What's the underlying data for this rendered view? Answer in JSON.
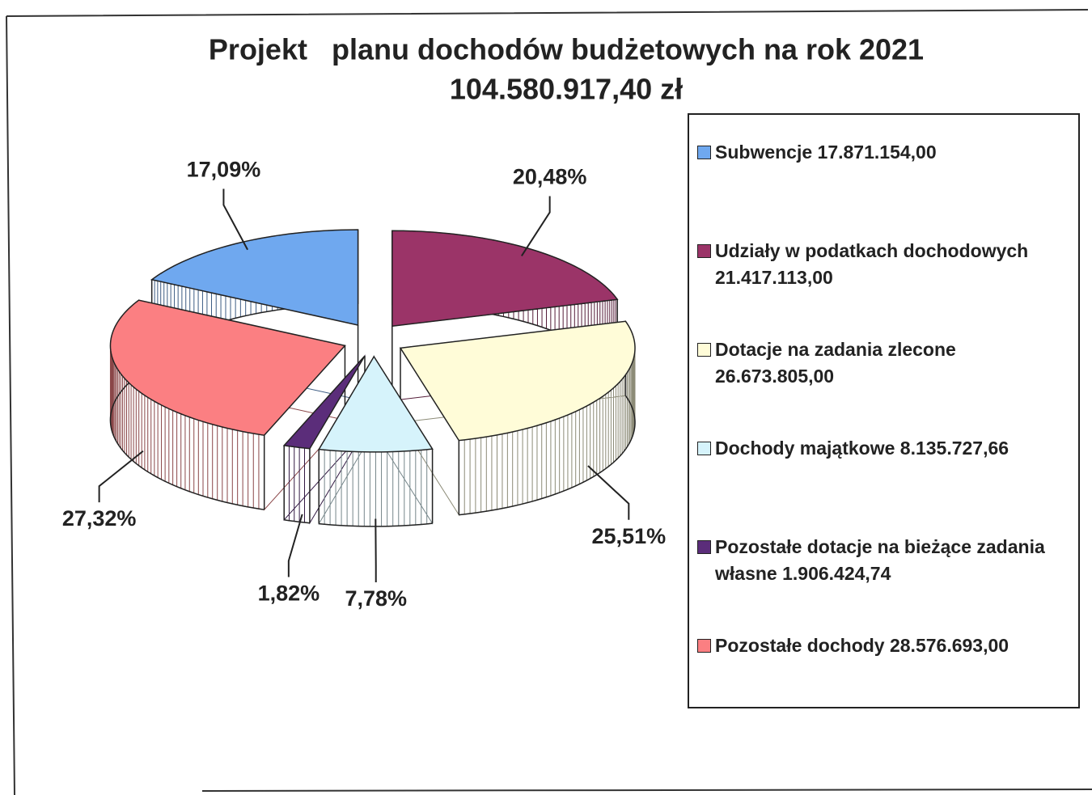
{
  "chart_data": {
    "type": "pie",
    "title": "Projekt   planu dochodów budżetowych na rok 2021",
    "subtitle": "104.580.917,40 zł",
    "categories": [
      "Subwencje 17.871.154,00",
      "Udziały w podatkach dochodowych 21.417.113,00",
      "Dotacje na zadania zlecone 26.673.805,00",
      "Dochody majątkowe 8.135.727,66",
      "Pozostałe dotacje na bieżące zadania własne 1.906.424,74",
      "Pozostałe dochody 28.576.693,00"
    ],
    "values": [
      17.09,
      20.48,
      25.51,
      7.78,
      1.82,
      27.32
    ],
    "value_labels": [
      "17,09%",
      "20,48%",
      "25,51%",
      "7,78%",
      "1,82%",
      "27,32%"
    ],
    "colors": [
      "#6fa8ef",
      "#9b3468",
      "#fffcd8",
      "#d6f3fb",
      "#5b2d7a",
      "#fb7f82"
    ],
    "legend": "right"
  }
}
